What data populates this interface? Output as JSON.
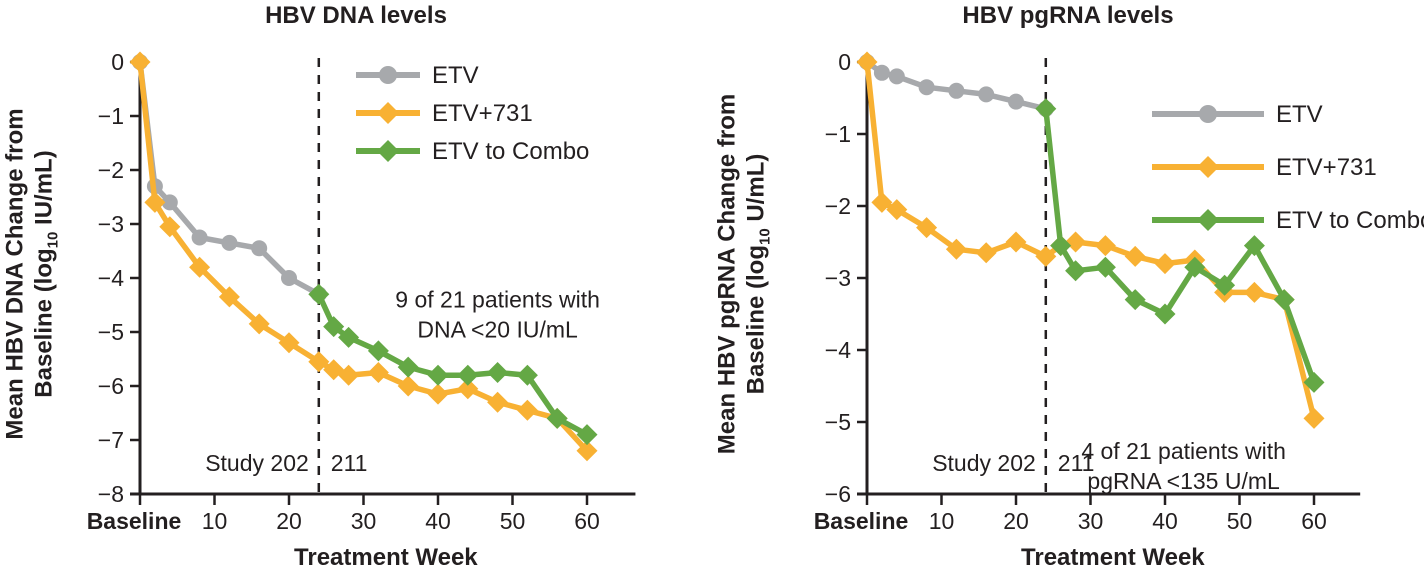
{
  "colors": {
    "text": "#231F20",
    "axis": "#231F20",
    "background": "#FFFFFF",
    "etv_gray": "#A7A9AC",
    "etv731_yellow": "#F8B133",
    "combo_green": "#64A845"
  },
  "chart_data": [
    {
      "type": "line",
      "title": "HBV DNA levels",
      "ylabel": {
        "line1": "Mean HBV DNA Change from",
        "line2_pre": "Baseline (log",
        "sub": "10",
        "line2_post": " IU/mL)"
      },
      "xlabel": "Treatment Week",
      "ylim": [
        -8,
        0
      ],
      "yticks": [
        0,
        -1,
        -2,
        -3,
        -4,
        -5,
        -6,
        -7,
        -8
      ],
      "x_ticks": [
        {
          "value": 0,
          "label": "Baseline"
        },
        {
          "value": 10,
          "label": "10"
        },
        {
          "value": 20,
          "label": "20"
        },
        {
          "value": 30,
          "label": "30"
        },
        {
          "value": 40,
          "label": "40"
        },
        {
          "value": 50,
          "label": "50"
        },
        {
          "value": 60,
          "label": "60"
        }
      ],
      "dashed_line_week": 24,
      "study_labels": {
        "left": "Study 202",
        "right": "211"
      },
      "annotation": {
        "lines": [
          "9 of 21 patients with",
          "DNA <20 IU/mL"
        ],
        "anchor_week": 48,
        "anchor_value": -4.4
      },
      "legend_position": "upper-right",
      "series": [
        {
          "name": "ETV",
          "color": "#A7A9AC",
          "marker": "circle",
          "x": [
            0,
            2,
            4,
            8,
            12,
            16,
            20,
            24
          ],
          "values": [
            0,
            -2.3,
            -2.6,
            -3.25,
            -3.35,
            -3.45,
            -4.0,
            -4.3
          ]
        },
        {
          "name": "ETV+731",
          "color": "#F8B133",
          "marker": "diamond",
          "x": [
            0,
            2,
            4,
            8,
            12,
            16,
            20,
            24,
            26,
            28,
            32,
            36,
            40,
            44,
            48,
            52,
            56,
            60
          ],
          "values": [
            0,
            -2.6,
            -3.05,
            -3.8,
            -4.35,
            -4.85,
            -5.2,
            -5.55,
            -5.7,
            -5.8,
            -5.75,
            -6.0,
            -6.15,
            -6.05,
            -6.3,
            -6.45,
            -6.6,
            -7.2
          ]
        },
        {
          "name": "ETV to Combo",
          "color": "#64A845",
          "marker": "diamond",
          "x": [
            24,
            26,
            28,
            32,
            36,
            40,
            44,
            48,
            52,
            56,
            60
          ],
          "values": [
            -4.3,
            -4.9,
            -5.1,
            -5.35,
            -5.65,
            -5.8,
            -5.8,
            -5.75,
            -5.8,
            -6.6,
            -6.9
          ]
        }
      ]
    },
    {
      "type": "line",
      "title": "HBV pgRNA levels",
      "ylabel": {
        "line1": "Mean HBV pgRNA Change from",
        "line2_pre": "Baseline (log",
        "sub": "10",
        "line2_post": " U/mL)"
      },
      "xlabel": "Treatment Week",
      "ylim": [
        -6,
        0
      ],
      "yticks": [
        0,
        -1,
        -2,
        -3,
        -4,
        -5,
        -6
      ],
      "x_ticks": [
        {
          "value": 0,
          "label": "Baseline"
        },
        {
          "value": 10,
          "label": "10"
        },
        {
          "value": 20,
          "label": "20"
        },
        {
          "value": 30,
          "label": "30"
        },
        {
          "value": 40,
          "label": "40"
        },
        {
          "value": 50,
          "label": "50"
        },
        {
          "value": 60,
          "label": "60"
        }
      ],
      "dashed_line_week": 24,
      "study_labels": {
        "left": "Study 202",
        "right": "211"
      },
      "annotation": {
        "lines": [
          "4 of 21 patients with",
          "pgRNA <135 U/mL"
        ],
        "anchor_week": 42.5,
        "anchor_value": -5.4
      },
      "legend_position": "upper-right",
      "series": [
        {
          "name": "ETV",
          "color": "#A7A9AC",
          "marker": "circle",
          "x": [
            0,
            2,
            4,
            8,
            12,
            16,
            20,
            24
          ],
          "values": [
            0,
            -0.15,
            -0.2,
            -0.35,
            -0.4,
            -0.45,
            -0.55,
            -0.65
          ]
        },
        {
          "name": "ETV+731",
          "color": "#F8B133",
          "marker": "diamond",
          "x": [
            0,
            2,
            4,
            8,
            12,
            16,
            20,
            24,
            26,
            28,
            32,
            36,
            40,
            44,
            48,
            52,
            56,
            60
          ],
          "values": [
            0,
            -1.95,
            -2.05,
            -2.3,
            -2.6,
            -2.65,
            -2.5,
            -2.7,
            -2.55,
            -2.5,
            -2.55,
            -2.7,
            -2.8,
            -2.75,
            -3.2,
            -3.2,
            -3.3,
            -4.95
          ]
        },
        {
          "name": "ETV to Combo",
          "color": "#64A845",
          "marker": "diamond",
          "x": [
            24,
            26,
            28,
            32,
            36,
            40,
            44,
            48,
            52,
            56,
            60
          ],
          "values": [
            -0.65,
            -2.55,
            -2.9,
            -2.85,
            -3.3,
            -3.5,
            -2.85,
            -3.1,
            -2.55,
            -3.3,
            -4.45
          ]
        }
      ]
    }
  ]
}
